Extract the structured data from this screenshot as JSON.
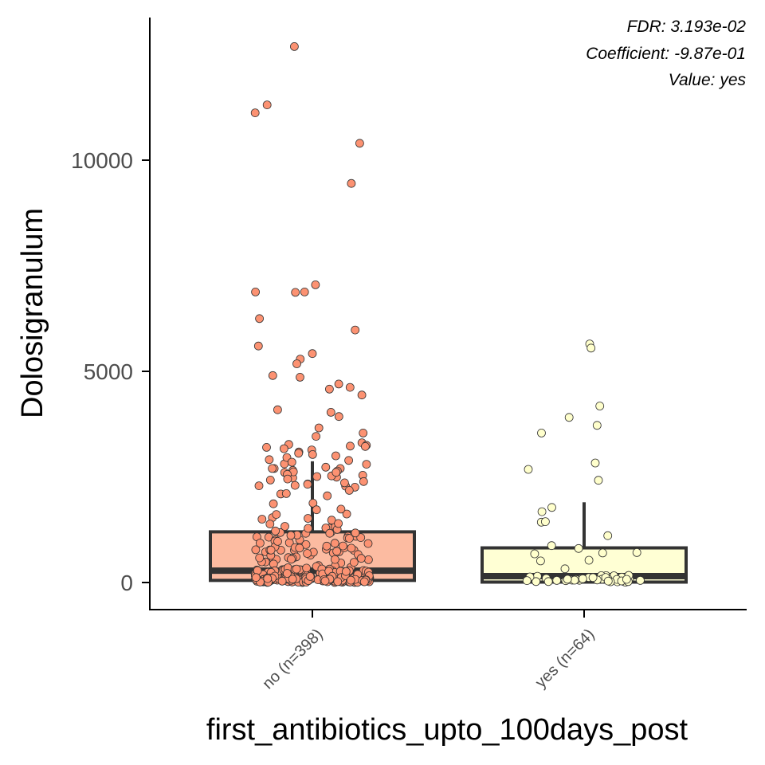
{
  "chart_data": {
    "type": "box",
    "xlabel": "first_antibiotics_upto_100days_post",
    "ylabel": "Dolosigranulum",
    "yticks": [
      0,
      5000,
      10000
    ],
    "ylim": [
      -650,
      13300
    ],
    "grid": false,
    "legend": "none",
    "annotations": [
      "FDR: 3.193e-02",
      "Coefficient: -9.87e-01",
      "Value: yes"
    ],
    "categories": [
      "no (n=398)",
      "yes (n=64)"
    ],
    "groups": [
      {
        "category": "no (n=398)",
        "n": 398,
        "color": "#fcbba1",
        "point_color": "#fc9272",
        "box": {
          "min": 0,
          "q1": 50,
          "median": 280,
          "q3": 1200,
          "max": 2870
        },
        "outliers": [
          12690,
          11310,
          11120,
          10400,
          9450,
          7050,
          6880,
          6880,
          6870,
          6250,
          5980,
          5600,
          5420,
          5290,
          5180,
          4900,
          4860,
          4700,
          4620,
          4580,
          4440,
          4090,
          4030,
          3930,
          3660,
          3540,
          3460,
          3310,
          3270,
          3250,
          3230,
          3220,
          3200,
          3170,
          3140,
          3090,
          3060,
          3030,
          3000,
          2960,
          2910,
          2890,
          2850,
          2800,
          2730,
          2700,
          2640,
          2610,
          2560,
          2540,
          2510,
          2450,
          2390,
          2300,
          2290
        ]
      },
      {
        "category": "yes (n=64)",
        "n": 64,
        "color": "#ffffd4",
        "point_color": "#ffffcc",
        "box": {
          "min": 0,
          "q1": 10,
          "median": 150,
          "q3": 820,
          "max": 1900
        },
        "outliers": [
          5650,
          5550,
          4180,
          3910,
          3720,
          3540,
          2830,
          2680,
          2420
        ]
      }
    ]
  },
  "colors": {
    "axis": "#000000",
    "box_stroke": "#333333",
    "point_stroke": "#333333"
  }
}
